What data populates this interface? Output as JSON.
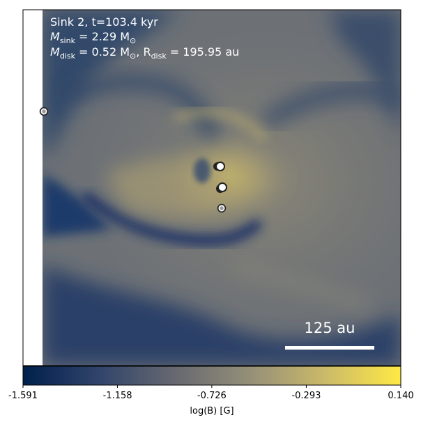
{
  "panel": {
    "line1": "Sink 2, t=103.4 kyr",
    "line2_prefix": "M",
    "line2_sub": "sink",
    "line2_rest": " = 2.29 M",
    "line2_sun": "⊙",
    "line3_prefix": "M",
    "line3_sub": "disk",
    "line3_mid": " = 0.52 M",
    "line3_sun": "⊙",
    "line3_sep": ", R",
    "line3_sub2": "disk",
    "line3_rest": " = 195.95 au",
    "scalebar_label": "125 au"
  },
  "colorbar": {
    "ticks": [
      "-1.591",
      "-1.158",
      "-0.726",
      "-0.293",
      "0.140"
    ],
    "tick_values": [
      -1.591,
      -1.158,
      -0.726,
      -0.293,
      0.14
    ],
    "min": -1.591,
    "max": 0.14,
    "label": "log(B) [G]",
    "colormap": "cividis",
    "colors": [
      "#00204c",
      "#31446b",
      "#666870",
      "#958f78",
      "#cbba69",
      "#ffe945"
    ]
  },
  "sinks": [
    {
      "id": "sink-far-left"
    },
    {
      "id": "sink-upper"
    },
    {
      "id": "sink-middle"
    },
    {
      "id": "sink-lower"
    }
  ]
}
